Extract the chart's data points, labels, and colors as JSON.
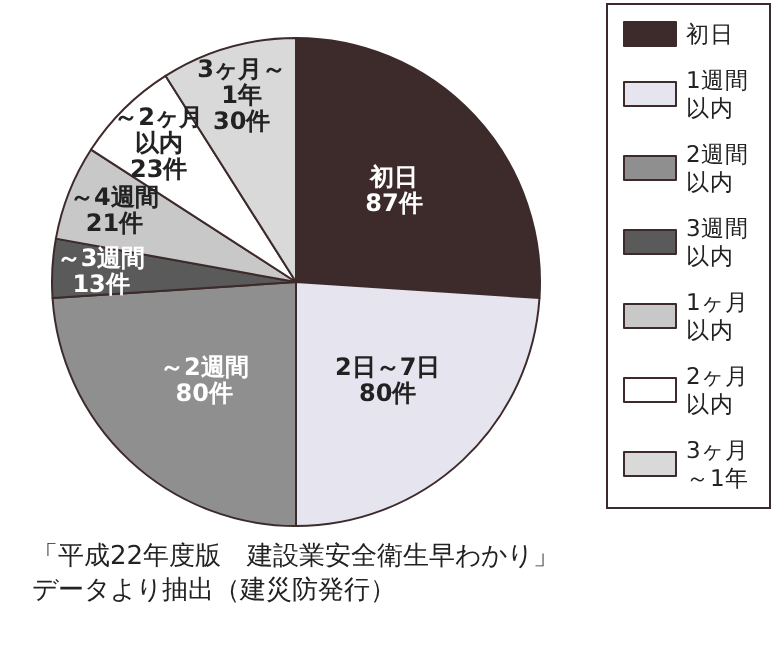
{
  "chart_data": {
    "type": "pie",
    "categories": [
      "初日",
      "1週間以内",
      "2週間以内",
      "3週間以内",
      "1ヶ月以内",
      "2ヶ月以内",
      "3ヶ月～1年"
    ],
    "values": [
      87,
      80,
      80,
      13,
      21,
      23,
      30
    ],
    "value_labels": [
      "初日87件",
      "2日～7日80件",
      "～2週間80件",
      "～3週間13件",
      "～4週間21件",
      "～2ヶ月以内23件",
      "3ヶ月～1年30件"
    ],
    "colors": [
      "#3d2b2b",
      "#e6e4ef",
      "#8f8f8f",
      "#5a5a5a",
      "#c8c8c8",
      "#ffffff",
      "#d9d9d9"
    ],
    "legend": "right",
    "annotations": [
      "「平成22年度版　建設業安全衛生早わかり」データより抽出（建災防発行）"
    ]
  }
}
